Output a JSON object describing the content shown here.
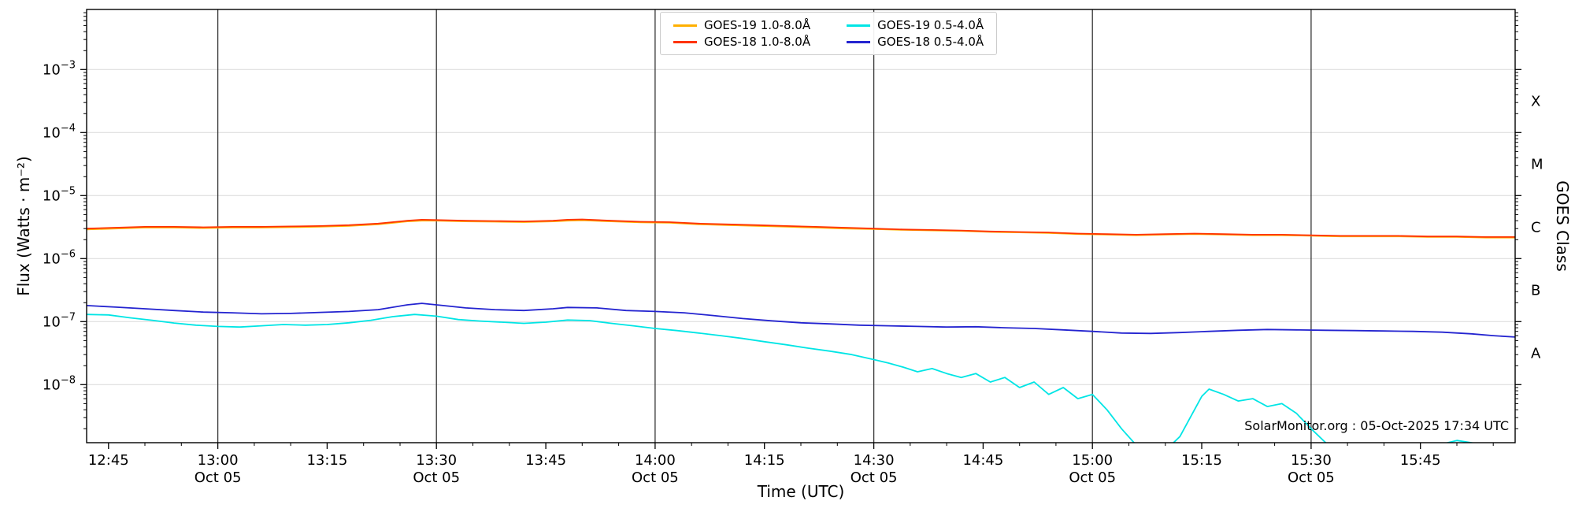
{
  "page": {
    "background": "#ffffff"
  },
  "chart_data": {
    "type": "line",
    "title": "",
    "xlabel": "Time (UTC)",
    "ylabel": "Flux (Watts · m⁻²)",
    "ylabel_right": "GOES Class",
    "annotation": "SolarMonitor.org : 05-Oct-2025 17:34 UTC",
    "x_domain_minutes": [
      762,
      958
    ],
    "y_domain": [
      1.2e-09,
      0.009
    ],
    "x_minor_step_minutes": 5,
    "grid": {
      "horizontal_decades": true,
      "vertical_30min": true
    },
    "x_ticks": [
      {
        "m": 765,
        "label": "12:45",
        "sub": ""
      },
      {
        "m": 780,
        "label": "13:00",
        "sub": "Oct 05"
      },
      {
        "m": 795,
        "label": "13:15",
        "sub": ""
      },
      {
        "m": 810,
        "label": "13:30",
        "sub": "Oct 05"
      },
      {
        "m": 825,
        "label": "13:45",
        "sub": ""
      },
      {
        "m": 840,
        "label": "14:00",
        "sub": "Oct 05"
      },
      {
        "m": 855,
        "label": "14:15",
        "sub": ""
      },
      {
        "m": 870,
        "label": "14:30",
        "sub": "Oct 05"
      },
      {
        "m": 885,
        "label": "14:45",
        "sub": ""
      },
      {
        "m": 900,
        "label": "15:00",
        "sub": "Oct 05"
      },
      {
        "m": 915,
        "label": "15:15",
        "sub": ""
      },
      {
        "m": 930,
        "label": "15:30",
        "sub": "Oct 05"
      },
      {
        "m": 945,
        "label": "15:45",
        "sub": ""
      }
    ],
    "y_major_ticks": [
      {
        "value": 0.001,
        "exp": "−3"
      },
      {
        "value": 0.0001,
        "exp": "−4"
      },
      {
        "value": 1e-05,
        "exp": "−5"
      },
      {
        "value": 1e-06,
        "exp": "−6"
      },
      {
        "value": 1e-07,
        "exp": "−7"
      },
      {
        "value": 1e-08,
        "exp": "−8"
      }
    ],
    "goes_classes": [
      {
        "label": "X",
        "value": 0.000316
      },
      {
        "label": "M",
        "value": 3.16e-05
      },
      {
        "label": "C",
        "value": 3.16e-06
      },
      {
        "label": "B",
        "value": 3.16e-07
      },
      {
        "label": "A",
        "value": 3.16e-08
      }
    ],
    "legend": {
      "position": "top-center",
      "entries": [
        {
          "label": "GOES-19 1.0-8.0Å",
          "color": "#ffb000"
        },
        {
          "label": "GOES-19 0.5-4.0Å",
          "color": "#00e5e5"
        },
        {
          "label": "GOES-18 1.0-8.0Å",
          "color": "#ff3300"
        },
        {
          "label": "GOES-18 0.5-4.0Å",
          "color": "#2424d0"
        }
      ]
    },
    "series": [
      {
        "id": "goes19-long",
        "name": "GOES-19 1.0-8.0Å",
        "color": "#ffb000",
        "points": [
          [
            762,
            2.9e-06
          ],
          [
            766,
            3e-06
          ],
          [
            770,
            3.1e-06
          ],
          [
            774,
            3.1e-06
          ],
          [
            778,
            3.05e-06
          ],
          [
            782,
            3.1e-06
          ],
          [
            786,
            3.1e-06
          ],
          [
            790,
            3.15e-06
          ],
          [
            794,
            3.2e-06
          ],
          [
            798,
            3.3e-06
          ],
          [
            802,
            3.5e-06
          ],
          [
            806,
            3.9e-06
          ],
          [
            808,
            4e-06
          ],
          [
            810,
            4e-06
          ],
          [
            814,
            3.9e-06
          ],
          [
            818,
            3.85e-06
          ],
          [
            822,
            3.8e-06
          ],
          [
            826,
            3.9e-06
          ],
          [
            828,
            4e-06
          ],
          [
            830,
            4.05e-06
          ],
          [
            834,
            3.9e-06
          ],
          [
            838,
            3.75e-06
          ],
          [
            842,
            3.7e-06
          ],
          [
            846,
            3.5e-06
          ],
          [
            850,
            3.4e-06
          ],
          [
            854,
            3.3e-06
          ],
          [
            858,
            3.2e-06
          ],
          [
            862,
            3.1e-06
          ],
          [
            866,
            3e-06
          ],
          [
            870,
            2.95e-06
          ],
          [
            874,
            2.85e-06
          ],
          [
            878,
            2.8e-06
          ],
          [
            882,
            2.75e-06
          ],
          [
            886,
            2.65e-06
          ],
          [
            890,
            2.6e-06
          ],
          [
            894,
            2.55e-06
          ],
          [
            898,
            2.45e-06
          ],
          [
            902,
            2.4e-06
          ],
          [
            906,
            2.35e-06
          ],
          [
            910,
            2.4e-06
          ],
          [
            914,
            2.45e-06
          ],
          [
            918,
            2.4e-06
          ],
          [
            922,
            2.35e-06
          ],
          [
            926,
            2.35e-06
          ],
          [
            930,
            2.3e-06
          ],
          [
            934,
            2.25e-06
          ],
          [
            938,
            2.25e-06
          ],
          [
            942,
            2.25e-06
          ],
          [
            946,
            2.2e-06
          ],
          [
            950,
            2.2e-06
          ],
          [
            954,
            2.15e-06
          ],
          [
            958,
            2.15e-06
          ]
        ]
      },
      {
        "id": "goes18-long",
        "name": "GOES-18 1.0-8.0Å",
        "color": "#ff3300",
        "points": [
          [
            762,
            3e-06
          ],
          [
            766,
            3.1e-06
          ],
          [
            770,
            3.2e-06
          ],
          [
            774,
            3.2e-06
          ],
          [
            778,
            3.15e-06
          ],
          [
            782,
            3.2e-06
          ],
          [
            786,
            3.2e-06
          ],
          [
            790,
            3.25e-06
          ],
          [
            794,
            3.3e-06
          ],
          [
            798,
            3.4e-06
          ],
          [
            802,
            3.6e-06
          ],
          [
            806,
            4e-06
          ],
          [
            808,
            4.15e-06
          ],
          [
            810,
            4.1e-06
          ],
          [
            814,
            4e-06
          ],
          [
            818,
            3.95e-06
          ],
          [
            822,
            3.9e-06
          ],
          [
            826,
            4e-06
          ],
          [
            828,
            4.15e-06
          ],
          [
            830,
            4.2e-06
          ],
          [
            834,
            4e-06
          ],
          [
            838,
            3.85e-06
          ],
          [
            842,
            3.8e-06
          ],
          [
            846,
            3.6e-06
          ],
          [
            850,
            3.5e-06
          ],
          [
            854,
            3.4e-06
          ],
          [
            858,
            3.3e-06
          ],
          [
            862,
            3.2e-06
          ],
          [
            866,
            3.1e-06
          ],
          [
            870,
            3e-06
          ],
          [
            874,
            2.9e-06
          ],
          [
            878,
            2.85e-06
          ],
          [
            882,
            2.8e-06
          ],
          [
            886,
            2.7e-06
          ],
          [
            890,
            2.65e-06
          ],
          [
            894,
            2.6e-06
          ],
          [
            898,
            2.5e-06
          ],
          [
            902,
            2.45e-06
          ],
          [
            906,
            2.4e-06
          ],
          [
            910,
            2.45e-06
          ],
          [
            914,
            2.5e-06
          ],
          [
            918,
            2.45e-06
          ],
          [
            922,
            2.4e-06
          ],
          [
            926,
            2.4e-06
          ],
          [
            930,
            2.35e-06
          ],
          [
            934,
            2.3e-06
          ],
          [
            938,
            2.3e-06
          ],
          [
            942,
            2.3e-06
          ],
          [
            946,
            2.25e-06
          ],
          [
            950,
            2.25e-06
          ],
          [
            954,
            2.2e-06
          ],
          [
            958,
            2.2e-06
          ]
        ]
      },
      {
        "id": "goes19-short",
        "name": "GOES-19 0.5-4.0Å",
        "color": "#00e5e5",
        "points": [
          [
            762,
            1.3e-07
          ],
          [
            765,
            1.28e-07
          ],
          [
            768,
            1.15e-07
          ],
          [
            771,
            1.05e-07
          ],
          [
            774,
            9.5e-08
          ],
          [
            777,
            8.8e-08
          ],
          [
            780,
            8.4e-08
          ],
          [
            783,
            8.2e-08
          ],
          [
            786,
            8.6e-08
          ],
          [
            789,
            9e-08
          ],
          [
            792,
            8.8e-08
          ],
          [
            795,
            9e-08
          ],
          [
            798,
            9.6e-08
          ],
          [
            801,
            1.05e-07
          ],
          [
            804,
            1.2e-07
          ],
          [
            807,
            1.3e-07
          ],
          [
            810,
            1.22e-07
          ],
          [
            813,
            1.08e-07
          ],
          [
            816,
            1.02e-07
          ],
          [
            819,
            9.8e-08
          ],
          [
            822,
            9.4e-08
          ],
          [
            825,
            9.8e-08
          ],
          [
            828,
            1.06e-07
          ],
          [
            831,
            1.04e-07
          ],
          [
            834,
            9.4e-08
          ],
          [
            837,
            8.6e-08
          ],
          [
            840,
            7.8e-08
          ],
          [
            843,
            7.2e-08
          ],
          [
            846,
            6.6e-08
          ],
          [
            849,
            6e-08
          ],
          [
            852,
            5.4e-08
          ],
          [
            855,
            4.8e-08
          ],
          [
            858,
            4.3e-08
          ],
          [
            861,
            3.8e-08
          ],
          [
            864,
            3.4e-08
          ],
          [
            867,
            3e-08
          ],
          [
            870,
            2.5e-08
          ],
          [
            872,
            2.2e-08
          ],
          [
            874,
            1.9e-08
          ],
          [
            876,
            1.6e-08
          ],
          [
            878,
            1.8e-08
          ],
          [
            880,
            1.5e-08
          ],
          [
            882,
            1.3e-08
          ],
          [
            884,
            1.5e-08
          ],
          [
            886,
            1.1e-08
          ],
          [
            888,
            1.3e-08
          ],
          [
            890,
            9e-09
          ],
          [
            892,
            1.1e-08
          ],
          [
            894,
            7e-09
          ],
          [
            896,
            9e-09
          ],
          [
            898,
            6e-09
          ],
          [
            900,
            7e-09
          ],
          [
            902,
            4e-09
          ],
          [
            904,
            2e-09
          ],
          [
            906,
            1.1e-09
          ],
          [
            908,
            8e-10
          ],
          [
            910,
            9e-10
          ],
          [
            912,
            1.5e-09
          ],
          [
            914,
            4e-09
          ],
          [
            915,
            6.5e-09
          ],
          [
            916,
            8.5e-09
          ],
          [
            918,
            7e-09
          ],
          [
            920,
            5.5e-09
          ],
          [
            922,
            6e-09
          ],
          [
            924,
            4.5e-09
          ],
          [
            926,
            5e-09
          ],
          [
            928,
            3.5e-09
          ],
          [
            930,
            2e-09
          ],
          [
            932,
            1.2e-09
          ],
          [
            934,
            8e-10
          ],
          [
            938,
            6e-10
          ],
          [
            942,
            8e-10
          ],
          [
            946,
            1e-09
          ],
          [
            950,
            1.3e-09
          ],
          [
            954,
            1.1e-09
          ],
          [
            958,
            9e-10
          ]
        ]
      },
      {
        "id": "goes18-short",
        "name": "GOES-18 0.5-4.0Å",
        "color": "#2424d0",
        "points": [
          [
            762,
            1.8e-07
          ],
          [
            766,
            1.7e-07
          ],
          [
            770,
            1.6e-07
          ],
          [
            774,
            1.5e-07
          ],
          [
            778,
            1.42e-07
          ],
          [
            782,
            1.38e-07
          ],
          [
            786,
            1.33e-07
          ],
          [
            790,
            1.35e-07
          ],
          [
            794,
            1.4e-07
          ],
          [
            798,
            1.45e-07
          ],
          [
            802,
            1.55e-07
          ],
          [
            806,
            1.85e-07
          ],
          [
            808,
            1.95e-07
          ],
          [
            810,
            1.85e-07
          ],
          [
            814,
            1.65e-07
          ],
          [
            818,
            1.55e-07
          ],
          [
            822,
            1.5e-07
          ],
          [
            826,
            1.6e-07
          ],
          [
            828,
            1.68e-07
          ],
          [
            832,
            1.65e-07
          ],
          [
            836,
            1.5e-07
          ],
          [
            840,
            1.45e-07
          ],
          [
            844,
            1.38e-07
          ],
          [
            848,
            1.25e-07
          ],
          [
            852,
            1.12e-07
          ],
          [
            856,
            1.03e-07
          ],
          [
            860,
            9.6e-08
          ],
          [
            864,
            9.2e-08
          ],
          [
            868,
            8.8e-08
          ],
          [
            872,
            8.6e-08
          ],
          [
            876,
            8.4e-08
          ],
          [
            880,
            8.2e-08
          ],
          [
            884,
            8.3e-08
          ],
          [
            888,
            8e-08
          ],
          [
            892,
            7.8e-08
          ],
          [
            896,
            7.4e-08
          ],
          [
            900,
            7e-08
          ],
          [
            904,
            6.6e-08
          ],
          [
            908,
            6.5e-08
          ],
          [
            912,
            6.7e-08
          ],
          [
            916,
            7e-08
          ],
          [
            920,
            7.3e-08
          ],
          [
            924,
            7.5e-08
          ],
          [
            928,
            7.4e-08
          ],
          [
            932,
            7.3e-08
          ],
          [
            936,
            7.2e-08
          ],
          [
            940,
            7.1e-08
          ],
          [
            944,
            7e-08
          ],
          [
            948,
            6.8e-08
          ],
          [
            952,
            6.4e-08
          ],
          [
            955,
            6e-08
          ],
          [
            958,
            5.7e-08
          ]
        ]
      }
    ]
  }
}
